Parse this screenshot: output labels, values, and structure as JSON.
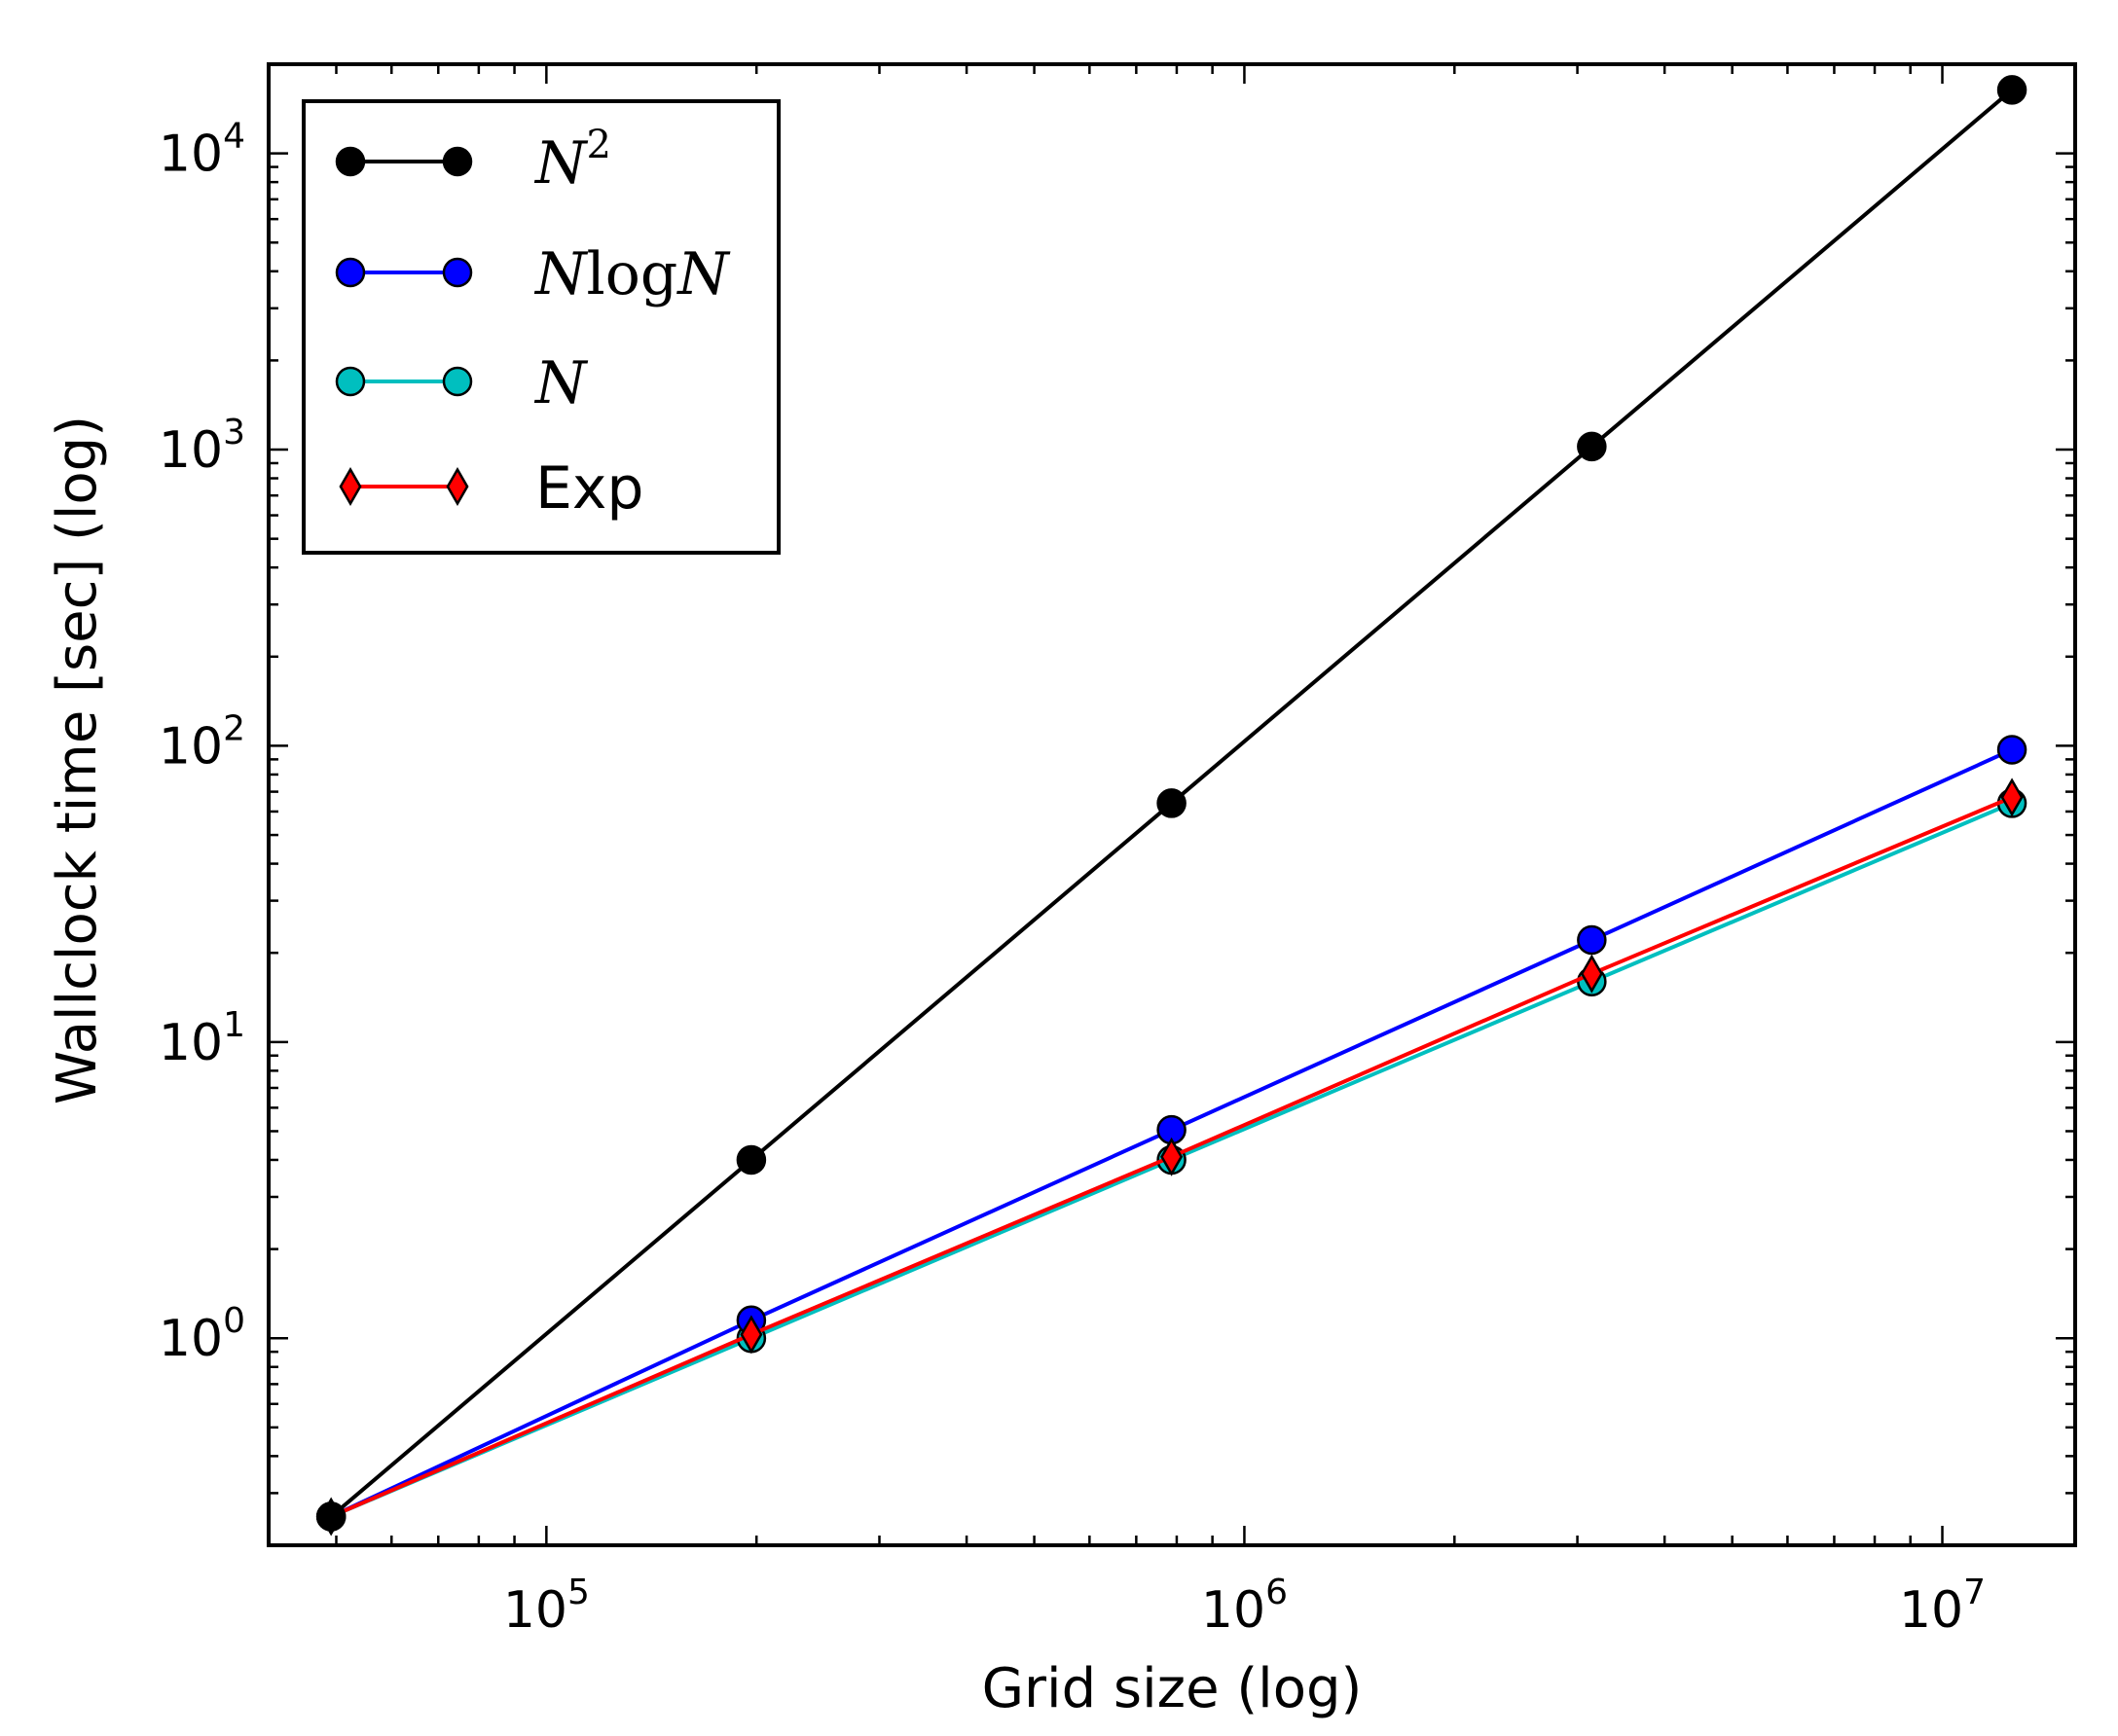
{
  "chart_data": {
    "type": "line",
    "xscale": "log",
    "yscale": "log",
    "xlabel": "Grid size (log)",
    "ylabel": "Wallclock time [sec] (log)",
    "xlim": [
      40000,
      15500000
    ],
    "ylim": [
      0.2,
      20000
    ],
    "x": [
      49152,
      196608,
      786432,
      3145728,
      12582912
    ],
    "x_ticks": [
      {
        "value": 100000,
        "base": "10",
        "exp": "5"
      },
      {
        "value": 1000000,
        "base": "10",
        "exp": "6"
      },
      {
        "value": 10000000,
        "base": "10",
        "exp": "7"
      }
    ],
    "y_ticks": [
      {
        "value": 1,
        "base": "10",
        "exp": "0"
      },
      {
        "value": 10,
        "base": "10",
        "exp": "1"
      },
      {
        "value": 100,
        "base": "10",
        "exp": "2"
      },
      {
        "value": 1000,
        "base": "10",
        "exp": "3"
      },
      {
        "value": 10000,
        "base": "10",
        "exp": "4"
      }
    ],
    "grid": false,
    "legend_position": "top-left",
    "series": [
      {
        "key": "n2",
        "name": "N^2",
        "name_parts": [
          "N",
          "",
          "2"
        ],
        "color": "#000000",
        "marker": "circle",
        "values": [
          0.25,
          4.0,
          64.0,
          1024.0,
          16384.0
        ]
      },
      {
        "key": "nlogn",
        "name": "NlogN",
        "name_parts": [
          "N",
          "log",
          "N"
        ],
        "color": "#0000ff",
        "marker": "circle",
        "values": [
          0.25,
          1.15,
          5.05,
          22.1,
          97.0
        ]
      },
      {
        "key": "n",
        "name": "N",
        "name_parts": [
          "N",
          "",
          ""
        ],
        "color": "#00bfbf",
        "marker": "circle",
        "values": [
          0.25,
          1.0,
          4.0,
          16.0,
          64.0
        ]
      },
      {
        "key": "exp",
        "name": "Exp",
        "name_parts": [
          "",
          "",
          ""
        ],
        "color": "#ff0000",
        "marker": "diamond",
        "values": [
          0.25,
          1.03,
          4.1,
          17.0,
          67.0
        ]
      }
    ]
  }
}
